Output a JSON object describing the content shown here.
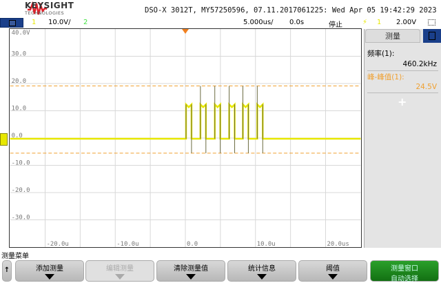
{
  "header": {
    "brand": "KEYSIGHT",
    "brand_sub": "TECHNOLOGIES",
    "title": "DSO-X 3012T, MY57250596, 07.11.2017061225: Wed Apr 05 19:42:29 2023"
  },
  "status": {
    "ch1": "1",
    "ch1_scale": "10.0V/",
    "ch2": "2",
    "timebase": "5.000us/",
    "delay": "0.0s",
    "run_state": "停止",
    "trigger_source": "1",
    "trigger_level": "2.00V"
  },
  "colors": {
    "ch1": "#e8e800",
    "ch2": "#40e040",
    "cursor": "#f0a030",
    "menu": "#1a3f8a"
  },
  "yaxis": {
    "labels": [
      "40.0V",
      "30.0",
      "20.0",
      "10.0",
      "0.0",
      "-10.0",
      "-20.0",
      "-30.0"
    ]
  },
  "xaxis": {
    "labels": [
      "-20.0u",
      "-10.0u",
      "0.0",
      "10.0u",
      "20.0us"
    ]
  },
  "measure": {
    "title": "测量",
    "m1_label": "频率(1):",
    "m1_value": "460.2kHz",
    "m2_label": "峰-峰值(1):",
    "m2_value": "24.5V",
    "add": "+"
  },
  "softkeys": {
    "menu_title": "测量菜单",
    "buttons": [
      {
        "label": "添加测量"
      },
      {
        "label": "编辑测量"
      },
      {
        "label": "清除测量值"
      },
      {
        "label": "统计信息"
      },
      {
        "label": "阈值"
      },
      {
        "label": "测量窗口",
        "label2": "自动选择"
      }
    ]
  }
}
